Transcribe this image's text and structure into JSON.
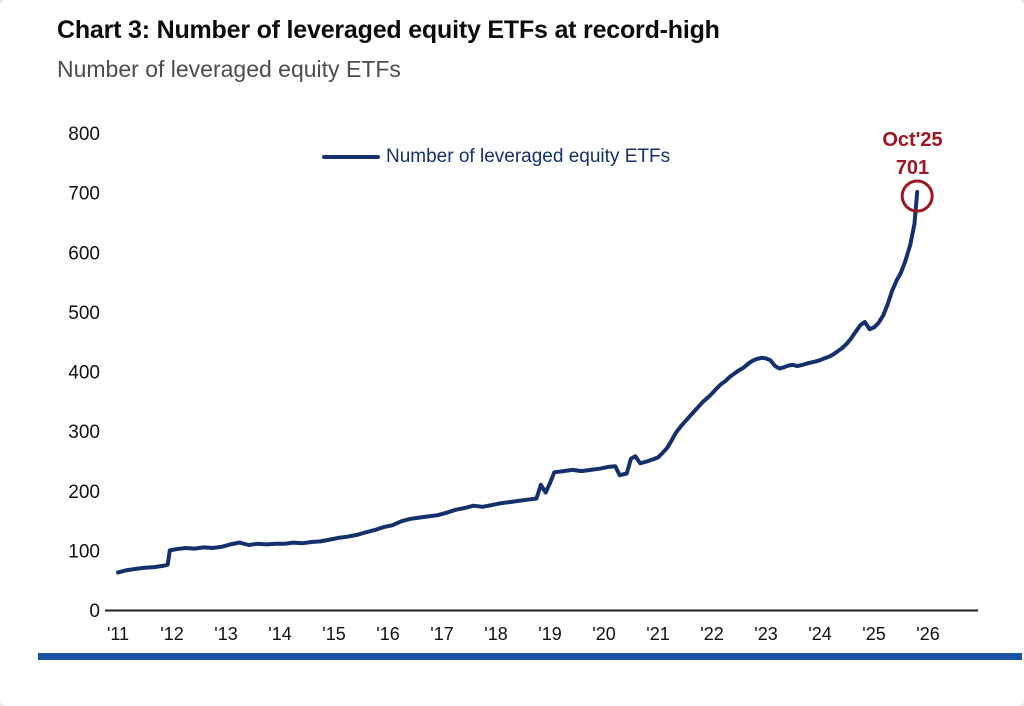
{
  "title": "Chart 3: Number of leveraged equity ETFs at record-high",
  "subtitle": "Number of leveraged equity ETFs",
  "legend": {
    "label": "Number of leveraged equity ETFs"
  },
  "annotation": {
    "label": "Oct'25",
    "value": "701"
  },
  "colors": {
    "line": "#16306e",
    "annotation": "#9e1622",
    "bottom_bar": "#1d55a6",
    "axis": "#222222",
    "tick_text": "#111111",
    "title": "#0b0b0b",
    "subtitle": "#4d4d4d"
  },
  "chart_data": {
    "type": "line",
    "title": "Chart 3: Number of leveraged equity ETFs at record-high",
    "subtitle": "Number of leveraged equity ETFs",
    "xlabel": "",
    "ylabel": "",
    "xlim": [
      2010.8,
      2026.6
    ],
    "ylim": [
      0,
      800
    ],
    "grid": false,
    "legend_position": "top-center",
    "x_ticks": [
      "'11",
      "'12",
      "'13",
      "'14",
      "'15",
      "'16",
      "'17",
      "'18",
      "'19",
      "'20",
      "'21",
      "'22",
      "'23",
      "'24",
      "'25",
      "'26"
    ],
    "y_ticks": [
      0,
      100,
      200,
      300,
      400,
      500,
      600,
      700,
      800
    ],
    "annotation": {
      "x": 2025.8,
      "y": 701,
      "label": "Oct'25",
      "value": 701
    },
    "series": [
      {
        "name": "Number of leveraged equity ETFs",
        "points": [
          [
            2011.0,
            63
          ],
          [
            2011.17,
            67
          ],
          [
            2011.33,
            69
          ],
          [
            2011.5,
            71
          ],
          [
            2011.67,
            72
          ],
          [
            2011.83,
            74
          ],
          [
            2011.92,
            76
          ],
          [
            2011.96,
            100
          ],
          [
            2012.08,
            102
          ],
          [
            2012.25,
            104
          ],
          [
            2012.42,
            103
          ],
          [
            2012.58,
            105
          ],
          [
            2012.75,
            104
          ],
          [
            2012.92,
            106
          ],
          [
            2013.08,
            110
          ],
          [
            2013.25,
            113
          ],
          [
            2013.42,
            109
          ],
          [
            2013.58,
            111
          ],
          [
            2013.75,
            110
          ],
          [
            2013.92,
            111
          ],
          [
            2014.08,
            111
          ],
          [
            2014.25,
            113
          ],
          [
            2014.42,
            112
          ],
          [
            2014.58,
            114
          ],
          [
            2014.75,
            115
          ],
          [
            2014.92,
            118
          ],
          [
            2015.08,
            121
          ],
          [
            2015.25,
            123
          ],
          [
            2015.42,
            126
          ],
          [
            2015.58,
            130
          ],
          [
            2015.75,
            134
          ],
          [
            2015.92,
            139
          ],
          [
            2016.08,
            142
          ],
          [
            2016.25,
            149
          ],
          [
            2016.42,
            153
          ],
          [
            2016.58,
            155
          ],
          [
            2016.75,
            157
          ],
          [
            2016.92,
            159
          ],
          [
            2017.08,
            163
          ],
          [
            2017.25,
            168
          ],
          [
            2017.42,
            171
          ],
          [
            2017.58,
            175
          ],
          [
            2017.75,
            173
          ],
          [
            2017.92,
            176
          ],
          [
            2018.08,
            179
          ],
          [
            2018.25,
            181
          ],
          [
            2018.42,
            183
          ],
          [
            2018.58,
            185
          ],
          [
            2018.75,
            187
          ],
          [
            2018.83,
            210
          ],
          [
            2018.92,
            197
          ],
          [
            2019.0,
            213
          ],
          [
            2019.08,
            231
          ],
          [
            2019.25,
            233
          ],
          [
            2019.42,
            235
          ],
          [
            2019.58,
            233
          ],
          [
            2019.75,
            235
          ],
          [
            2019.92,
            237
          ],
          [
            2020.08,
            240
          ],
          [
            2020.21,
            241
          ],
          [
            2020.29,
            226
          ],
          [
            2020.42,
            229
          ],
          [
            2020.5,
            254
          ],
          [
            2020.58,
            258
          ],
          [
            2020.67,
            246
          ],
          [
            2020.79,
            249
          ],
          [
            2020.92,
            253
          ],
          [
            2021.0,
            256
          ],
          [
            2021.08,
            263
          ],
          [
            2021.17,
            272
          ],
          [
            2021.25,
            284
          ],
          [
            2021.33,
            297
          ],
          [
            2021.42,
            308
          ],
          [
            2021.5,
            316
          ],
          [
            2021.58,
            324
          ],
          [
            2021.67,
            333
          ],
          [
            2021.75,
            341
          ],
          [
            2021.83,
            349
          ],
          [
            2021.92,
            356
          ],
          [
            2022.0,
            363
          ],
          [
            2022.08,
            371
          ],
          [
            2022.17,
            379
          ],
          [
            2022.25,
            384
          ],
          [
            2022.33,
            391
          ],
          [
            2022.42,
            397
          ],
          [
            2022.5,
            402
          ],
          [
            2022.58,
            406
          ],
          [
            2022.67,
            413
          ],
          [
            2022.75,
            418
          ],
          [
            2022.83,
            421
          ],
          [
            2022.92,
            423
          ],
          [
            2023.0,
            422
          ],
          [
            2023.08,
            419
          ],
          [
            2023.17,
            409
          ],
          [
            2023.25,
            405
          ],
          [
            2023.33,
            407
          ],
          [
            2023.42,
            410
          ],
          [
            2023.5,
            411
          ],
          [
            2023.58,
            409
          ],
          [
            2023.67,
            411
          ],
          [
            2023.75,
            413
          ],
          [
            2023.83,
            415
          ],
          [
            2023.92,
            417
          ],
          [
            2024.0,
            419
          ],
          [
            2024.08,
            422
          ],
          [
            2024.17,
            425
          ],
          [
            2024.25,
            429
          ],
          [
            2024.33,
            434
          ],
          [
            2024.42,
            440
          ],
          [
            2024.5,
            447
          ],
          [
            2024.58,
            456
          ],
          [
            2024.67,
            468
          ],
          [
            2024.75,
            478
          ],
          [
            2024.83,
            483
          ],
          [
            2024.92,
            471
          ],
          [
            2025.0,
            474
          ],
          [
            2025.08,
            481
          ],
          [
            2025.17,
            494
          ],
          [
            2025.25,
            512
          ],
          [
            2025.33,
            534
          ],
          [
            2025.42,
            553
          ],
          [
            2025.5,
            566
          ],
          [
            2025.58,
            585
          ],
          [
            2025.67,
            612
          ],
          [
            2025.75,
            648
          ],
          [
            2025.8,
            701
          ]
        ]
      }
    ]
  }
}
